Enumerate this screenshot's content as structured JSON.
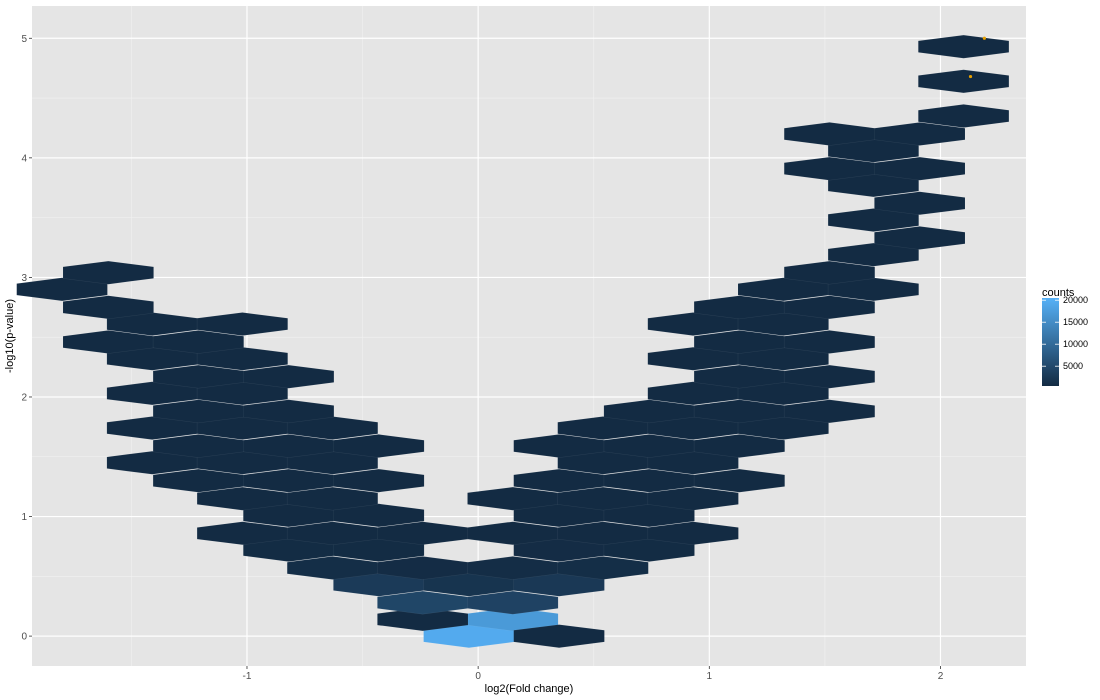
{
  "chart_data": {
    "type": "hexbin",
    "xlabel": "log2(Fold change)",
    "ylabel": "-log10(p-value)",
    "xlim": [
      -1.93,
      2.37
    ],
    "ylim": [
      -0.25,
      5.27
    ],
    "x_ticks": [
      -1,
      0,
      1,
      2
    ],
    "y_ticks": [
      0,
      1,
      2,
      3,
      4,
      5
    ],
    "grid": true,
    "background": "#e5e5e5",
    "hex_x_step": 0.392,
    "hex_y_step": 0.145,
    "legend": {
      "title": "counts",
      "labels": [
        "20000",
        "15000",
        "10000",
        "5000"
      ],
      "values": [
        20000,
        15000,
        10000,
        5000
      ],
      "min": 500,
      "max": 20500,
      "low_color": "#132b43",
      "high_color": "#56b1f7",
      "placement": "right"
    },
    "bins": [
      {
        "x": -0.04,
        "y": 0.0,
        "count": 19500
      },
      {
        "x": 0.15,
        "y": 0.14,
        "count": 17000
      },
      {
        "x": -0.24,
        "y": 0.14,
        "count": 400
      },
      {
        "x": 0.35,
        "y": 0.0,
        "count": 400
      },
      {
        "x": -0.24,
        "y": 0.28,
        "count": 4500
      },
      {
        "x": 0.15,
        "y": 0.28,
        "count": 4000
      },
      {
        "x": -0.43,
        "y": 0.43,
        "count": 2800
      },
      {
        "x": -0.04,
        "y": 0.43,
        "count": 1800
      },
      {
        "x": 0.35,
        "y": 0.43,
        "count": 2500
      },
      {
        "x": -0.63,
        "y": 0.57,
        "count": 900
      },
      {
        "x": -0.24,
        "y": 0.57,
        "count": 700
      },
      {
        "x": 0.15,
        "y": 0.57,
        "count": 800
      },
      {
        "x": 0.54,
        "y": 0.57,
        "count": 900
      },
      {
        "x": -0.82,
        "y": 0.72,
        "count": 600
      },
      {
        "x": -0.43,
        "y": 0.72,
        "count": 600
      },
      {
        "x": 0.35,
        "y": 0.72,
        "count": 700
      },
      {
        "x": 0.74,
        "y": 0.72,
        "count": 600
      },
      {
        "x": -1.02,
        "y": 0.86,
        "count": 400
      },
      {
        "x": -0.63,
        "y": 0.86,
        "count": 500
      },
      {
        "x": -0.24,
        "y": 0.86,
        "count": 400
      },
      {
        "x": 0.15,
        "y": 0.86,
        "count": 400
      },
      {
        "x": 0.54,
        "y": 0.86,
        "count": 500
      },
      {
        "x": 0.93,
        "y": 0.86,
        "count": 400
      },
      {
        "x": -0.82,
        "y": 1.01,
        "count": 500
      },
      {
        "x": -0.43,
        "y": 1.01,
        "count": 400
      },
      {
        "x": 0.35,
        "y": 1.01,
        "count": 400
      },
      {
        "x": 0.74,
        "y": 1.01,
        "count": 500
      },
      {
        "x": -1.02,
        "y": 1.15,
        "count": 400
      },
      {
        "x": -0.63,
        "y": 1.15,
        "count": 400
      },
      {
        "x": 0.15,
        "y": 1.15,
        "count": 300
      },
      {
        "x": 0.54,
        "y": 1.15,
        "count": 400
      },
      {
        "x": 0.93,
        "y": 1.15,
        "count": 400
      },
      {
        "x": -1.21,
        "y": 1.3,
        "count": 300
      },
      {
        "x": -0.82,
        "y": 1.3,
        "count": 300
      },
      {
        "x": -0.43,
        "y": 1.3,
        "count": 300
      },
      {
        "x": 0.35,
        "y": 1.3,
        "count": 300
      },
      {
        "x": 0.74,
        "y": 1.3,
        "count": 300
      },
      {
        "x": 1.13,
        "y": 1.3,
        "count": 300
      },
      {
        "x": -1.41,
        "y": 1.45,
        "count": 300
      },
      {
        "x": -1.02,
        "y": 1.45,
        "count": 300
      },
      {
        "x": -0.63,
        "y": 1.45,
        "count": 300
      },
      {
        "x": 0.54,
        "y": 1.45,
        "count": 300
      },
      {
        "x": 0.93,
        "y": 1.45,
        "count": 300
      },
      {
        "x": -1.21,
        "y": 1.59,
        "count": 300
      },
      {
        "x": -0.82,
        "y": 1.59,
        "count": 300
      },
      {
        "x": -0.43,
        "y": 1.59,
        "count": 300
      },
      {
        "x": 0.35,
        "y": 1.59,
        "count": 300
      },
      {
        "x": 0.74,
        "y": 1.59,
        "count": 300
      },
      {
        "x": 1.13,
        "y": 1.59,
        "count": 300
      },
      {
        "x": -1.41,
        "y": 1.74,
        "count": 300
      },
      {
        "x": -1.02,
        "y": 1.74,
        "count": 300
      },
      {
        "x": -0.63,
        "y": 1.74,
        "count": 300
      },
      {
        "x": 0.54,
        "y": 1.74,
        "count": 300
      },
      {
        "x": 0.93,
        "y": 1.74,
        "count": 300
      },
      {
        "x": 1.32,
        "y": 1.74,
        "count": 300
      },
      {
        "x": -1.21,
        "y": 1.88,
        "count": 300
      },
      {
        "x": -0.82,
        "y": 1.88,
        "count": 300
      },
      {
        "x": 0.74,
        "y": 1.88,
        "count": 300
      },
      {
        "x": 1.13,
        "y": 1.88,
        "count": 300
      },
      {
        "x": 1.52,
        "y": 1.88,
        "count": 300
      },
      {
        "x": -1.41,
        "y": 2.03,
        "count": 300
      },
      {
        "x": -1.02,
        "y": 2.03,
        "count": 300
      },
      {
        "x": 0.93,
        "y": 2.03,
        "count": 300
      },
      {
        "x": 1.32,
        "y": 2.03,
        "count": 300
      },
      {
        "x": -1.21,
        "y": 2.17,
        "count": 300
      },
      {
        "x": -0.82,
        "y": 2.17,
        "count": 300
      },
      {
        "x": 1.13,
        "y": 2.17,
        "count": 300
      },
      {
        "x": 1.52,
        "y": 2.17,
        "count": 300
      },
      {
        "x": -1.41,
        "y": 2.32,
        "count": 300
      },
      {
        "x": -1.02,
        "y": 2.32,
        "count": 300
      },
      {
        "x": 0.93,
        "y": 2.32,
        "count": 300
      },
      {
        "x": 1.32,
        "y": 2.32,
        "count": 300
      },
      {
        "x": -1.6,
        "y": 2.46,
        "count": 300
      },
      {
        "x": -1.21,
        "y": 2.46,
        "count": 300
      },
      {
        "x": 1.13,
        "y": 2.46,
        "count": 300
      },
      {
        "x": 1.52,
        "y": 2.46,
        "count": 300
      },
      {
        "x": -1.41,
        "y": 2.61,
        "count": 300
      },
      {
        "x": -1.02,
        "y": 2.61,
        "count": 300
      },
      {
        "x": 0.93,
        "y": 2.61,
        "count": 300
      },
      {
        "x": 1.32,
        "y": 2.61,
        "count": 300
      },
      {
        "x": -1.6,
        "y": 2.75,
        "count": 300
      },
      {
        "x": 1.13,
        "y": 2.75,
        "count": 300
      },
      {
        "x": 1.52,
        "y": 2.75,
        "count": 300
      },
      {
        "x": -1.8,
        "y": 2.9,
        "count": 300
      },
      {
        "x": 1.32,
        "y": 2.9,
        "count": 300
      },
      {
        "x": 1.71,
        "y": 2.9,
        "count": 300
      },
      {
        "x": -1.6,
        "y": 3.04,
        "count": 300
      },
      {
        "x": 1.52,
        "y": 3.04,
        "count": 300
      },
      {
        "x": 1.71,
        "y": 3.19,
        "count": 300
      },
      {
        "x": 1.91,
        "y": 3.33,
        "count": 300
      },
      {
        "x": 1.71,
        "y": 3.48,
        "count": 300
      },
      {
        "x": 1.91,
        "y": 3.62,
        "count": 300
      },
      {
        "x": 1.71,
        "y": 3.77,
        "count": 300
      },
      {
        "x": 1.52,
        "y": 3.91,
        "count": 300
      },
      {
        "x": 1.91,
        "y": 3.91,
        "count": 300
      },
      {
        "x": 1.71,
        "y": 4.06,
        "count": 300
      },
      {
        "x": 1.52,
        "y": 4.2,
        "count": 300
      },
      {
        "x": 1.91,
        "y": 4.2,
        "count": 300
      },
      {
        "x": 2.1,
        "y": 4.35,
        "count": 300
      },
      {
        "x": 2.1,
        "y": 4.64,
        "count": 300
      },
      {
        "x": 2.1,
        "y": 4.93,
        "count": 300
      }
    ],
    "highlight_points": [
      {
        "x": 2.13,
        "y": 4.68,
        "color": "#e69f00"
      },
      {
        "x": 2.19,
        "y": 5.0,
        "color": "#e69f00"
      }
    ]
  }
}
